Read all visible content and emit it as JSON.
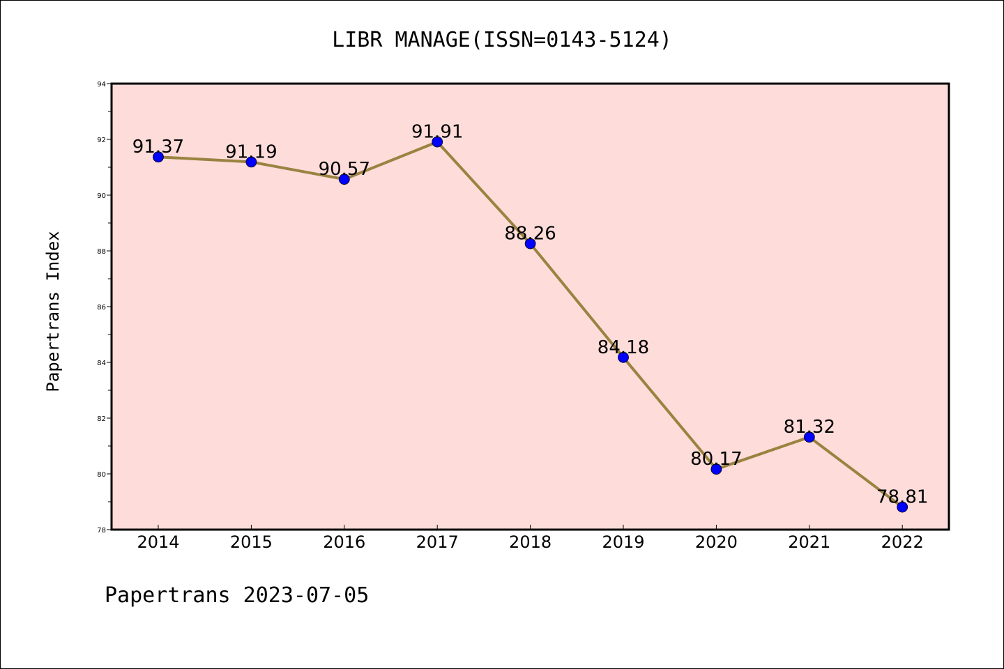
{
  "chart_data": {
    "type": "line",
    "title": "LIBR MANAGE(ISSN=0143-5124)",
    "ylabel": "Papertrans Index",
    "xlabel": "",
    "categories": [
      "2014",
      "2015",
      "2016",
      "2017",
      "2018",
      "2019",
      "2020",
      "2021",
      "2022"
    ],
    "values": [
      91.37,
      91.19,
      90.57,
      91.91,
      88.26,
      84.18,
      80.17,
      81.32,
      78.81
    ],
    "data_labels": [
      "91.37",
      "91.19",
      "90.57",
      "91.91",
      "88.26",
      "84.18",
      "80.17",
      "81.32",
      "78.81"
    ],
    "ylim": [
      78,
      94
    ],
    "y_major_ticks": [
      78,
      80,
      82,
      84,
      86,
      88,
      90,
      92,
      94
    ],
    "y_minor_step": 1,
    "grid": false,
    "legend": "none",
    "colors": {
      "plot_background": "#fddcda",
      "line": "#9a8340",
      "marker": "#0000ff",
      "axes": "#000000"
    }
  },
  "footer": {
    "text": "Papertrans 2023-07-05"
  }
}
